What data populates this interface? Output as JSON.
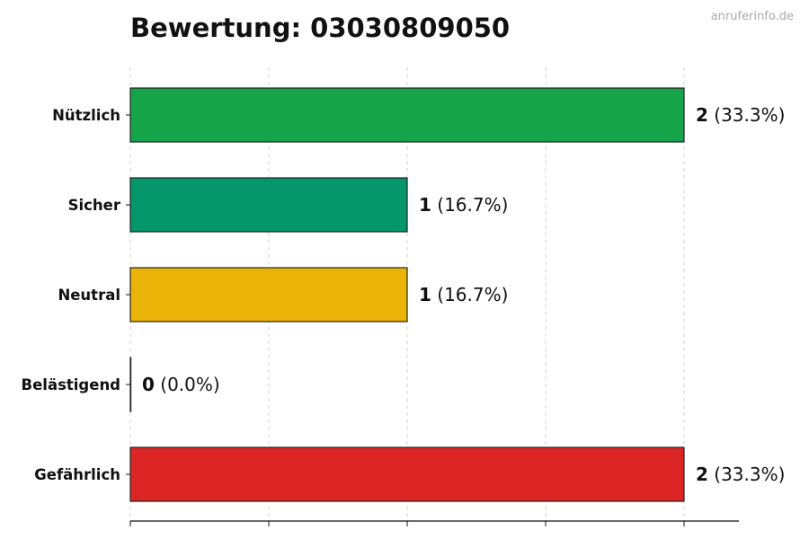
{
  "chart_data": {
    "type": "bar",
    "orientation": "horizontal",
    "title": "Bewertung: 03030809050",
    "watermark": "anruferinfo.de",
    "categories": [
      "Nützlich",
      "Sicher",
      "Neutral",
      "Belästigend",
      "Gefährlich"
    ],
    "values": [
      2,
      1,
      1,
      0,
      2
    ],
    "percent_labels": [
      "(33.3%)",
      "(16.7%)",
      "(16.7%)",
      "(0.0%)",
      "(33.3%)"
    ],
    "colors": [
      "#17a34a",
      "#059669",
      "#eab308",
      "#f97316",
      "#dc2626"
    ],
    "xlim": [
      0,
      2.2
    ],
    "grid": true,
    "xtick_labels_visible": false
  }
}
